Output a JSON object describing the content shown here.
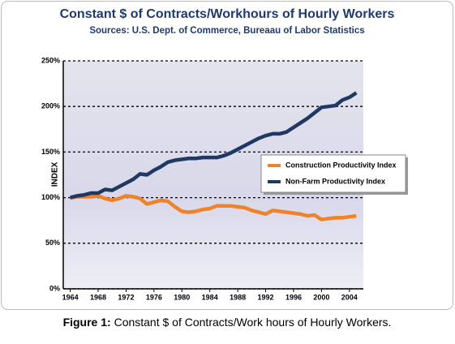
{
  "chart_data": {
    "type": "line",
    "title": "Constant $ of Contracts/Workhours of Hourly Workers",
    "subtitle": "Sources: U.S. Dept. of Commerce, Bureaau of Labor Statistics",
    "y_label": "INDEX",
    "x": [
      1964,
      1965,
      1966,
      1967,
      1968,
      1969,
      1970,
      1971,
      1972,
      1973,
      1974,
      1975,
      1976,
      1977,
      1978,
      1979,
      1980,
      1981,
      1982,
      1983,
      1984,
      1985,
      1986,
      1987,
      1988,
      1989,
      1990,
      1991,
      1992,
      1993,
      1994,
      1995,
      1996,
      1997,
      1998,
      1999,
      2000,
      2001,
      2002,
      2003,
      2004,
      2005
    ],
    "series": [
      {
        "name": "Construction Productivity Index",
        "color": "#f0822a",
        "values": [
          100,
          101,
          101,
          101,
          102,
          99,
          97,
          99,
          102,
          101,
          99,
          93,
          95,
          97,
          96,
          90,
          85,
          84,
          85,
          87,
          88,
          91,
          91,
          91,
          90,
          89,
          86,
          84,
          82,
          86,
          85,
          84,
          83,
          82,
          80,
          81,
          76,
          77,
          78,
          78,
          79,
          80
        ]
      },
      {
        "name": "Non-Farm Productivity Index",
        "color": "#1f3864",
        "values": [
          100,
          102,
          103,
          105,
          105,
          109,
          108,
          112,
          116,
          120,
          126,
          125,
          130,
          134,
          139,
          141,
          142,
          143,
          143,
          144,
          144,
          144,
          146,
          149,
          153,
          157,
          161,
          165,
          168,
          170,
          170,
          172,
          177,
          182,
          187,
          193,
          199,
          200,
          201,
          207,
          210,
          215
        ]
      }
    ],
    "xlim": [
      1963,
      2006
    ],
    "xticks": [
      1964,
      1968,
      1972,
      1976,
      1980,
      1984,
      1988,
      1992,
      1996,
      2000,
      2004
    ],
    "ylim": [
      0,
      250
    ],
    "yticks": [
      {
        "value": 0,
        "label": "0%"
      },
      {
        "value": 50,
        "label": "50%"
      },
      {
        "value": 100,
        "label": "100%"
      },
      {
        "value": 150,
        "label": "150%"
      },
      {
        "value": 200,
        "label": "200%"
      },
      {
        "value": 250,
        "label": "250%"
      }
    ],
    "grid": true,
    "legend": "right"
  },
  "caption": {
    "label": "Figure 1:",
    "text": "Constant $ of Contracts/Work hours of Hourly Workers."
  }
}
